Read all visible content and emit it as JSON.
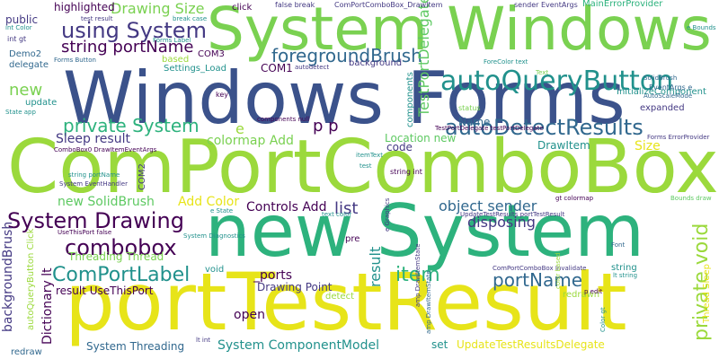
{
  "palette": {
    "background": "#ffffff",
    "lime": "#9bd93c",
    "green": "#7ad151",
    "teal_green": "#2db27d",
    "teal": "#21918c",
    "blue": "#31688e",
    "navy": "#3b528b",
    "indigo": "#443983",
    "purple": "#440154",
    "yellow": "#e7e419",
    "light_green": "#5ec962"
  },
  "words": [
    {
      "text": "portTestResult",
      "color": "yellow"
    },
    {
      "text": "ComPortComboBox",
      "color": "lime"
    },
    {
      "text": "new System",
      "color": "teal_green"
    },
    {
      "text": "Windows Forms",
      "color": "navy"
    },
    {
      "text": "System Windows",
      "color": "green"
    },
    {
      "text": "autoQueryButton",
      "color": "teal"
    },
    {
      "text": "autoDetectResults",
      "color": "blue"
    },
    {
      "text": "using System",
      "color": "indigo"
    },
    {
      "text": "System Drawing",
      "color": "purple"
    },
    {
      "text": "combobox",
      "color": "purple"
    },
    {
      "text": "ComPortLabel",
      "color": "teal"
    },
    {
      "text": "private System",
      "color": "teal_green"
    },
    {
      "text": "foregroundBrush",
      "color": "blue"
    },
    {
      "text": "string portName",
      "color": "purple"
    },
    {
      "text": "portName",
      "color": "blue"
    },
    {
      "text": "private void",
      "color": "lime"
    },
    {
      "text": "item",
      "color": "teal_green"
    },
    {
      "text": "TestPortDelegate",
      "color": "light_green"
    },
    {
      "text": "Drawing Size",
      "color": "green"
    },
    {
      "text": "new",
      "color": "green"
    },
    {
      "text": "colormap Add",
      "color": "green"
    },
    {
      "text": "Sleep result",
      "color": "indigo"
    },
    {
      "text": "new SolidBrush",
      "color": "light_green"
    },
    {
      "text": "Add Color",
      "color": "yellow"
    },
    {
      "text": "Controls Add",
      "color": "purple"
    },
    {
      "text": "list",
      "color": "indigo"
    },
    {
      "text": "object sender",
      "color": "blue"
    },
    {
      "text": "disposing",
      "color": "indigo"
    },
    {
      "text": "Threading Thread",
      "color": "green"
    },
    {
      "text": "Dictionary lt",
      "color": "purple"
    },
    {
      "text": "backgroundBrush",
      "color": "indigo"
    },
    {
      "text": "result",
      "color": "teal"
    },
    {
      "text": "_ports",
      "color": "purple"
    },
    {
      "text": "Drawing Point",
      "color": "indigo"
    },
    {
      "text": "open",
      "color": "purple"
    },
    {
      "text": "System ComponentModel",
      "color": "teal"
    },
    {
      "text": "System Threading",
      "color": "blue"
    },
    {
      "text": "UpdateTestResultsDelegate",
      "color": "yellow"
    },
    {
      "text": "set",
      "color": "teal"
    },
    {
      "text": "result UseThisPort",
      "color": "purple"
    },
    {
      "text": "Name",
      "color": "blue"
    },
    {
      "text": "Location new",
      "color": "light_green"
    },
    {
      "text": "code",
      "color": "indigo"
    },
    {
      "text": "DrawItem",
      "color": "teal"
    },
    {
      "text": "Size",
      "color": "yellow"
    },
    {
      "text": "e",
      "color": "lime"
    },
    {
      "text": "p p",
      "color": "purple"
    },
    {
      "text": "COM1",
      "color": "purple"
    },
    {
      "text": "COM2",
      "color": "indigo"
    },
    {
      "text": "COM3",
      "color": "purple"
    },
    {
      "text": "highlighted",
      "color": "purple"
    },
    {
      "text": "public",
      "color": "indigo"
    },
    {
      "text": "Demo2",
      "color": "blue"
    },
    {
      "text": "delegate",
      "color": "blue"
    },
    {
      "text": "update",
      "color": "teal"
    },
    {
      "text": "based",
      "color": "lime"
    },
    {
      "text": "Settings_Load",
      "color": "teal"
    },
    {
      "text": "background",
      "color": "indigo"
    },
    {
      "text": "components",
      "color": "teal"
    },
    {
      "text": "click",
      "color": "purple"
    },
    {
      "text": "MainErrorProvider",
      "color": "teal_green"
    },
    {
      "text": "InitializeComponent",
      "color": "teal"
    },
    {
      "text": "expanded",
      "color": "indigo"
    },
    {
      "text": "string",
      "color": "teal"
    },
    {
      "text": "Thread Sleep",
      "color": "yellow"
    },
    {
      "text": "redrawn",
      "color": "lime"
    },
    {
      "text": "detect",
      "color": "lime"
    },
    {
      "text": "pre",
      "color": "purple"
    },
    {
      "text": "void",
      "color": "teal"
    },
    {
      "text": "redraw",
      "color": "blue"
    },
    {
      "text": "autoQueryButton Click",
      "color": "lime"
    },
    {
      "text": "ComPortComboBox_DrawItem",
      "color": "indigo"
    },
    {
      "text": "false break",
      "color": "indigo"
    },
    {
      "text": "sender EventArgs",
      "color": "indigo"
    },
    {
      "text": "break case",
      "color": "teal"
    },
    {
      "text": "test result",
      "color": "indigo"
    },
    {
      "text": "int gt",
      "color": "indigo"
    },
    {
      "text": "int Color",
      "color": "teal"
    },
    {
      "text": "Forms Label",
      "color": "teal"
    },
    {
      "text": "Forms Button",
      "color": "blue"
    },
    {
      "text": "autodetect",
      "color": "indigo"
    },
    {
      "text": "key",
      "color": "purple"
    },
    {
      "text": "status",
      "color": "green"
    },
    {
      "text": "State app",
      "color": "teal"
    },
    {
      "text": "components null",
      "color": "purple"
    },
    {
      "text": "string int",
      "color": "purple"
    },
    {
      "text": "itemText",
      "color": "teal"
    },
    {
      "text": "ForeColor text",
      "color": "teal"
    },
    {
      "text": "SolidBrush",
      "color": "blue"
    },
    {
      "text": "EventArgs e",
      "color": "blue"
    },
    {
      "text": "AutoScaleMode",
      "color": "blue"
    },
    {
      "text": "Forms ErrorProvider",
      "color": "indigo"
    },
    {
      "text": "gt colormap",
      "color": "purple"
    },
    {
      "text": "Bounds draw",
      "color": "light_green"
    },
    {
      "text": "text color",
      "color": "teal"
    },
    {
      "text": "UseThisPort false",
      "color": "purple"
    },
    {
      "text": "System Diagnostics",
      "color": "teal"
    },
    {
      "text": "UpdateTestResults portTestResult",
      "color": "indigo"
    },
    {
      "text": "ComPortComboBox Invalidate",
      "color": "indigo"
    },
    {
      "text": "color based",
      "color": "lime"
    },
    {
      "text": "Font",
      "color": "blue"
    },
    {
      "text": "lt string",
      "color": "teal"
    },
    {
      "text": "lt int",
      "color": "indigo"
    },
    {
      "text": "p edit",
      "color": "purple"
    },
    {
      "text": "e State",
      "color": "teal"
    },
    {
      "text": "e Graphics",
      "color": "indigo"
    },
    {
      "text": "amp DrawItemState",
      "color": "indigo"
    },
    {
      "text": "Color gt",
      "color": "teal"
    },
    {
      "text": "e Bounds",
      "color": "teal"
    },
    {
      "text": "amp DrawItemState",
      "color": "blue"
    },
    {
      "text": "TestPortDelegate testPortDelegate",
      "color": "purple"
    },
    {
      "text": "string portName",
      "color": "teal"
    },
    {
      "text": "ComboBox0 DrawItemEventArgs",
      "color": "purple"
    },
    {
      "text": "System EventHandler",
      "color": "indigo"
    },
    {
      "text": "test",
      "color": "teal"
    },
    {
      "text": "Text",
      "color": "green"
    }
  ]
}
